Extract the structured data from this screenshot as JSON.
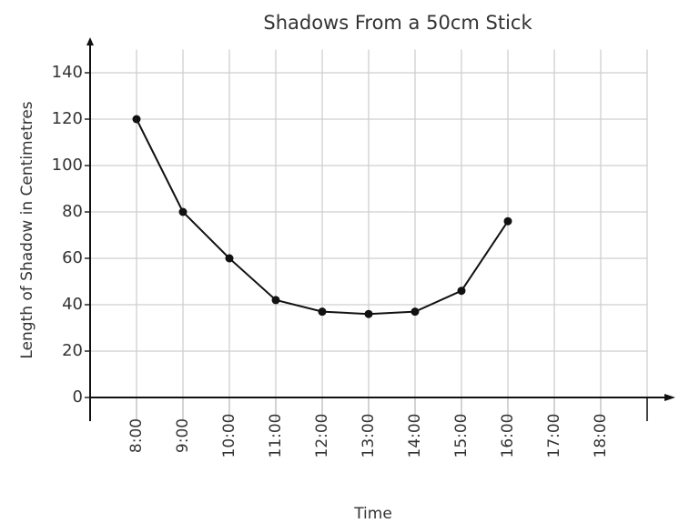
{
  "chart_data": {
    "type": "line",
    "title": "Shadows From a 50cm Stick",
    "x_label": "Time",
    "y_label": "Length of Shadow in Centimetres",
    "categories": [
      "8:00",
      "9:00",
      "10:00",
      "11:00",
      "12:00",
      "13:00",
      "14:00",
      "15:00",
      "16:00",
      "17:00",
      "18:00",
      null
    ],
    "values": [
      120,
      80,
      60,
      42,
      37,
      36,
      37,
      46,
      76,
      null,
      null,
      null
    ],
    "color": "#111111",
    "ylim": [
      0,
      150
    ],
    "yticks": [
      0,
      20,
      40,
      60,
      80,
      100,
      120,
      140
    ],
    "grid": true
  }
}
